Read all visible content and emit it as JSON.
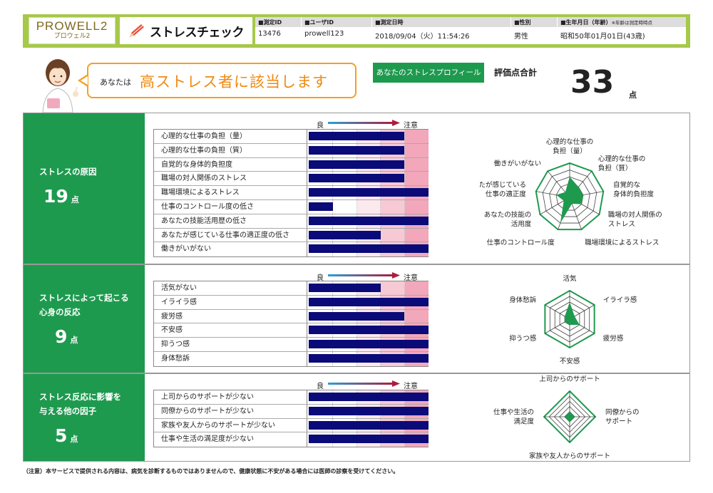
{
  "header": {
    "logo_main": "PROWELL2",
    "logo_sub": "プロウェル2",
    "app_title": "ストレスチェック",
    "fields": [
      {
        "label": "■測定ID",
        "value": "13476"
      },
      {
        "label": "■ユーザID",
        "value": "prowell123"
      },
      {
        "label": "■測定日時",
        "value": "2018/09/04（火）11:54:26"
      },
      {
        "label": "■性別",
        "value": "男性"
      },
      {
        "label": "■生年月日（年齢）",
        "note": "※年齢は測定時時点",
        "value": "昭和50年01月01日(43歳)"
      }
    ]
  },
  "verdict": {
    "prefix": "あなたは",
    "text": "高ストレス者に該当します",
    "profile_badge": "あなたのストレスプロフィール",
    "total_label": "評価点合計",
    "total_value": "33",
    "total_unit": "点"
  },
  "scale": {
    "good": "良",
    "caution": "注意"
  },
  "colors": {
    "green": "#1e9a4f",
    "header": "#a6c94a",
    "accent": "#ee8a12",
    "bar": "#0a0a78"
  },
  "sections": [
    {
      "title": "ストレスの原因",
      "score": "19",
      "unit": "点",
      "items": [
        {
          "label": "心理的な仕事の負担（量）",
          "level": 0.8
        },
        {
          "label": "心理的な仕事の負担（質）",
          "level": 0.8
        },
        {
          "label": "自覚的な身体的負担度",
          "level": 0.8
        },
        {
          "label": "職場の対人関係のストレス",
          "level": 0.8
        },
        {
          "label": "職場環境によるストレス",
          "level": 1.0
        },
        {
          "label": "仕事のコントロール度の低さ",
          "level": 0.2
        },
        {
          "label": "あなたの技能活用歴の低さ",
          "level": 1.0
        },
        {
          "label": "あなたが感じている仕事の適正度の低さ",
          "level": 0.6
        },
        {
          "label": "働きがいがない",
          "level": 1.0
        }
      ],
      "radar_labels": [
        "心理的な仕事の\n負担（量）",
        "心理的な仕事の\n負担（質）",
        "自覚的な\n身体的負担度",
        "職場の対人関係の\nストレス",
        "職場環境によるストレス",
        "仕事のコントロール度",
        "あなたの技能の\n活用度",
        "あなたが感じている\n仕事の適正度",
        "働きがいがない"
      ],
      "radar_values": [
        0.6,
        0.4,
        0.4,
        0.4,
        0.2,
        0.8,
        0.2,
        0.4,
        0.2
      ]
    },
    {
      "title": "ストレスによって起こる\n心身の反応",
      "score": "9",
      "unit": "点",
      "items": [
        {
          "label": "活気がない",
          "level": 0.6
        },
        {
          "label": "イライラ感",
          "level": 1.0
        },
        {
          "label": "疲労感",
          "level": 0.8
        },
        {
          "label": "不安感",
          "level": 1.0
        },
        {
          "label": "抑うつ感",
          "level": 1.0
        },
        {
          "label": "身体愁訴",
          "level": 1.0
        }
      ],
      "radar_labels": [
        "活気",
        "イライラ感",
        "疲労感",
        "不安感",
        "抑うつ感",
        "身体愁訴"
      ],
      "radar_values": [
        0.6,
        0.2,
        0.4,
        0.2,
        0.2,
        0.2
      ]
    },
    {
      "title": "ストレス反応に影響を\n与える他の因子",
      "score": "5",
      "unit": "点",
      "items": [
        {
          "label": "上司からのサポートが少ない",
          "level": 1.0
        },
        {
          "label": "同僚からのサポートが少ない",
          "level": 1.0
        },
        {
          "label": "家族や友人からのサポートが少ない",
          "level": 1.0
        },
        {
          "label": "仕事や生活の満足度が少ない",
          "level": 1.0
        }
      ],
      "radar_labels": [
        "上司からのサポート",
        "同僚からの\nサポート",
        "家族や友人からのサポート",
        "仕事や生活の\n満足度"
      ],
      "radar_values": [
        0.2,
        0.2,
        0.2,
        0.2
      ]
    }
  ],
  "footer_note": "（注意）本サービスで提供される内容は、病気を診断するものではありませんので、健康状態に不安がある場合には医師の診察を受けてください。"
}
